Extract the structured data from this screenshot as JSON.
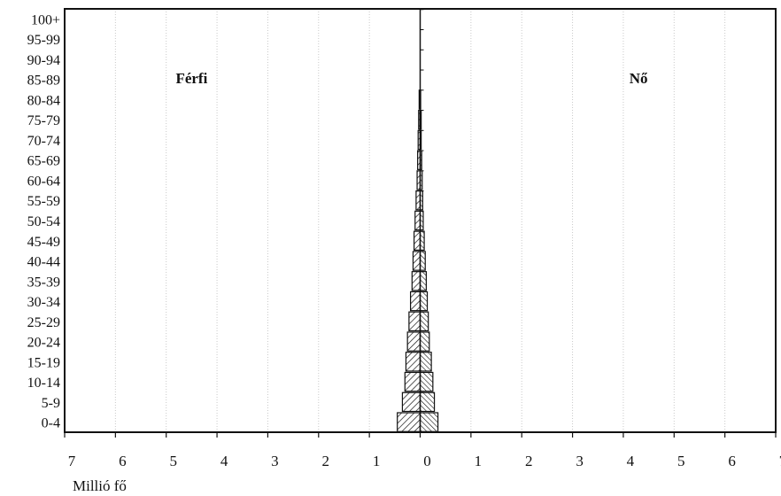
{
  "chart_data": {
    "type": "bar",
    "subtype": "population-pyramid",
    "categories": [
      "0-4",
      "5-9",
      "10-14",
      "15-19",
      "20-24",
      "25-29",
      "30-34",
      "35-39",
      "40-44",
      "45-49",
      "50-54",
      "55-59",
      "60-64",
      "65-69",
      "70-74",
      "75-79",
      "80-84",
      "85-89",
      "90-94",
      "95-99",
      "100+"
    ],
    "series": [
      {
        "name": "Férfi",
        "values": [
          0.45,
          0.35,
          0.3,
          0.28,
          0.25,
          0.22,
          0.19,
          0.16,
          0.14,
          0.12,
          0.1,
          0.08,
          0.06,
          0.05,
          0.04,
          0.03,
          0.02,
          0.0,
          0.0,
          0.0,
          0.0
        ]
      },
      {
        "name": "Nő",
        "values": [
          0.35,
          0.28,
          0.25,
          0.22,
          0.18,
          0.16,
          0.14,
          0.12,
          0.1,
          0.08,
          0.06,
          0.05,
          0.04,
          0.03,
          0.02,
          0.02,
          0.01,
          0.0,
          0.0,
          0.0,
          0.0
        ]
      }
    ],
    "x_ticks": [
      "7",
      "6",
      "5",
      "4",
      "3",
      "2",
      "1",
      "0",
      "1",
      "2",
      "3",
      "4",
      "5",
      "6",
      "7"
    ],
    "xlim": [
      -7,
      7
    ],
    "xlabel": "Millió fő",
    "ylabel": "",
    "title": "",
    "grid": "vertical",
    "colors": {
      "frame": "#111111",
      "grid": "#c9c9c9",
      "bar_fill": "#ffffff",
      "bar_hatch": "#111111"
    }
  }
}
